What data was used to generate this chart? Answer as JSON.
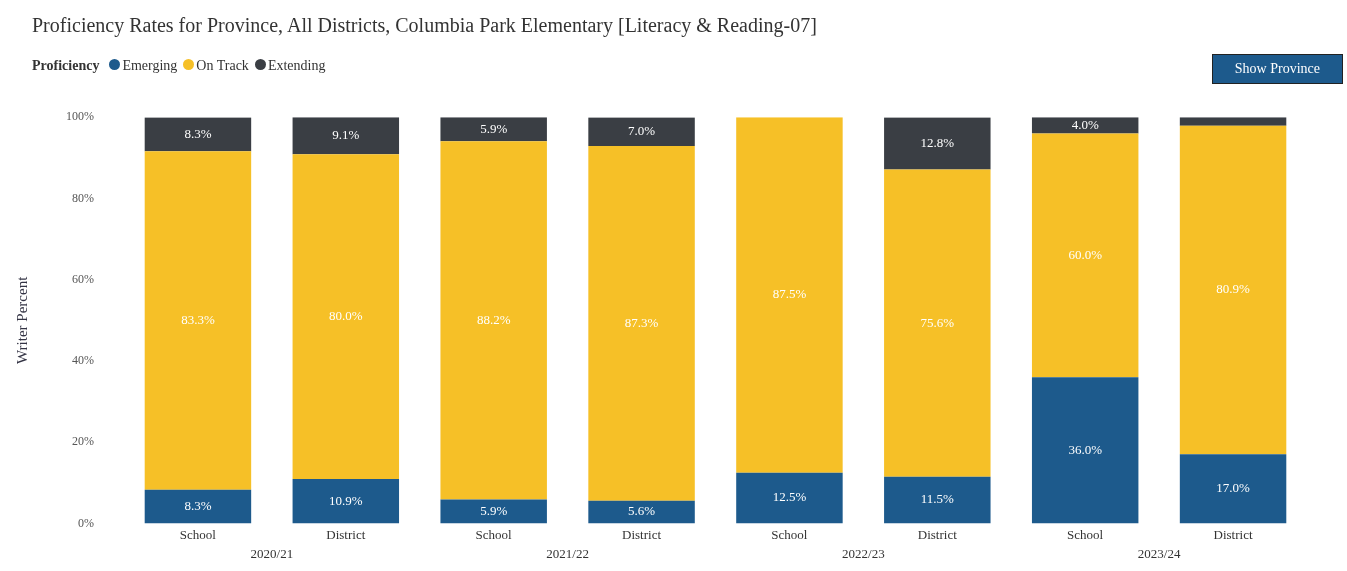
{
  "chart_data": {
    "type": "bar",
    "title": "Proficiency Rates for Province, All Districts, Columbia Park Elementary [Literacy & Reading-07]",
    "ylabel": "Writer Percent",
    "legend_title": "Proficiency",
    "categories": [
      "School",
      "District",
      "School",
      "District",
      "School",
      "District",
      "School",
      "District"
    ],
    "stacked": true,
    "series": [
      {
        "name": "Emerging",
        "color": "#1d5a8c",
        "values": [
          8.3,
          10.9,
          5.9,
          5.6,
          12.5,
          11.5,
          36.0,
          17.0
        ],
        "value_labels": [
          "8.3%",
          "10.9%",
          "5.9%",
          "5.6%",
          "12.5%",
          "11.5%",
          "36.0%",
          "17.0%"
        ]
      },
      {
        "name": "On Track",
        "color": "#f6c027",
        "values": [
          83.3,
          80.0,
          88.2,
          87.3,
          87.5,
          75.6,
          60.0,
          80.9
        ],
        "value_labels": [
          "83.3%",
          "80.0%",
          "88.2%",
          "87.3%",
          "87.5%",
          "75.6%",
          "60.0%",
          "80.9%"
        ]
      },
      {
        "name": "Extending",
        "color": "#3a3e44",
        "values": [
          8.3,
          9.1,
          5.9,
          7.0,
          null,
          12.8,
          4.0,
          2.1
        ],
        "value_labels": [
          "8.3%",
          "9.1%",
          "5.9%",
          "7.0%",
          null,
          "12.8%",
          "4.0%",
          null
        ]
      }
    ],
    "ylim": [
      0,
      100
    ],
    "yticks": [
      {
        "value": 0,
        "label": "0%"
      },
      {
        "value": 20,
        "label": "20%"
      },
      {
        "value": 40,
        "label": "40%"
      },
      {
        "value": 60,
        "label": "60%"
      },
      {
        "value": 80,
        "label": "80%"
      },
      {
        "value": 100,
        "label": "100%"
      }
    ],
    "grid": false,
    "legend": "top left",
    "annotations": [
      "2020/21",
      "2021/22",
      "2022/23",
      "2023/24",
      "Show Province"
    ]
  }
}
